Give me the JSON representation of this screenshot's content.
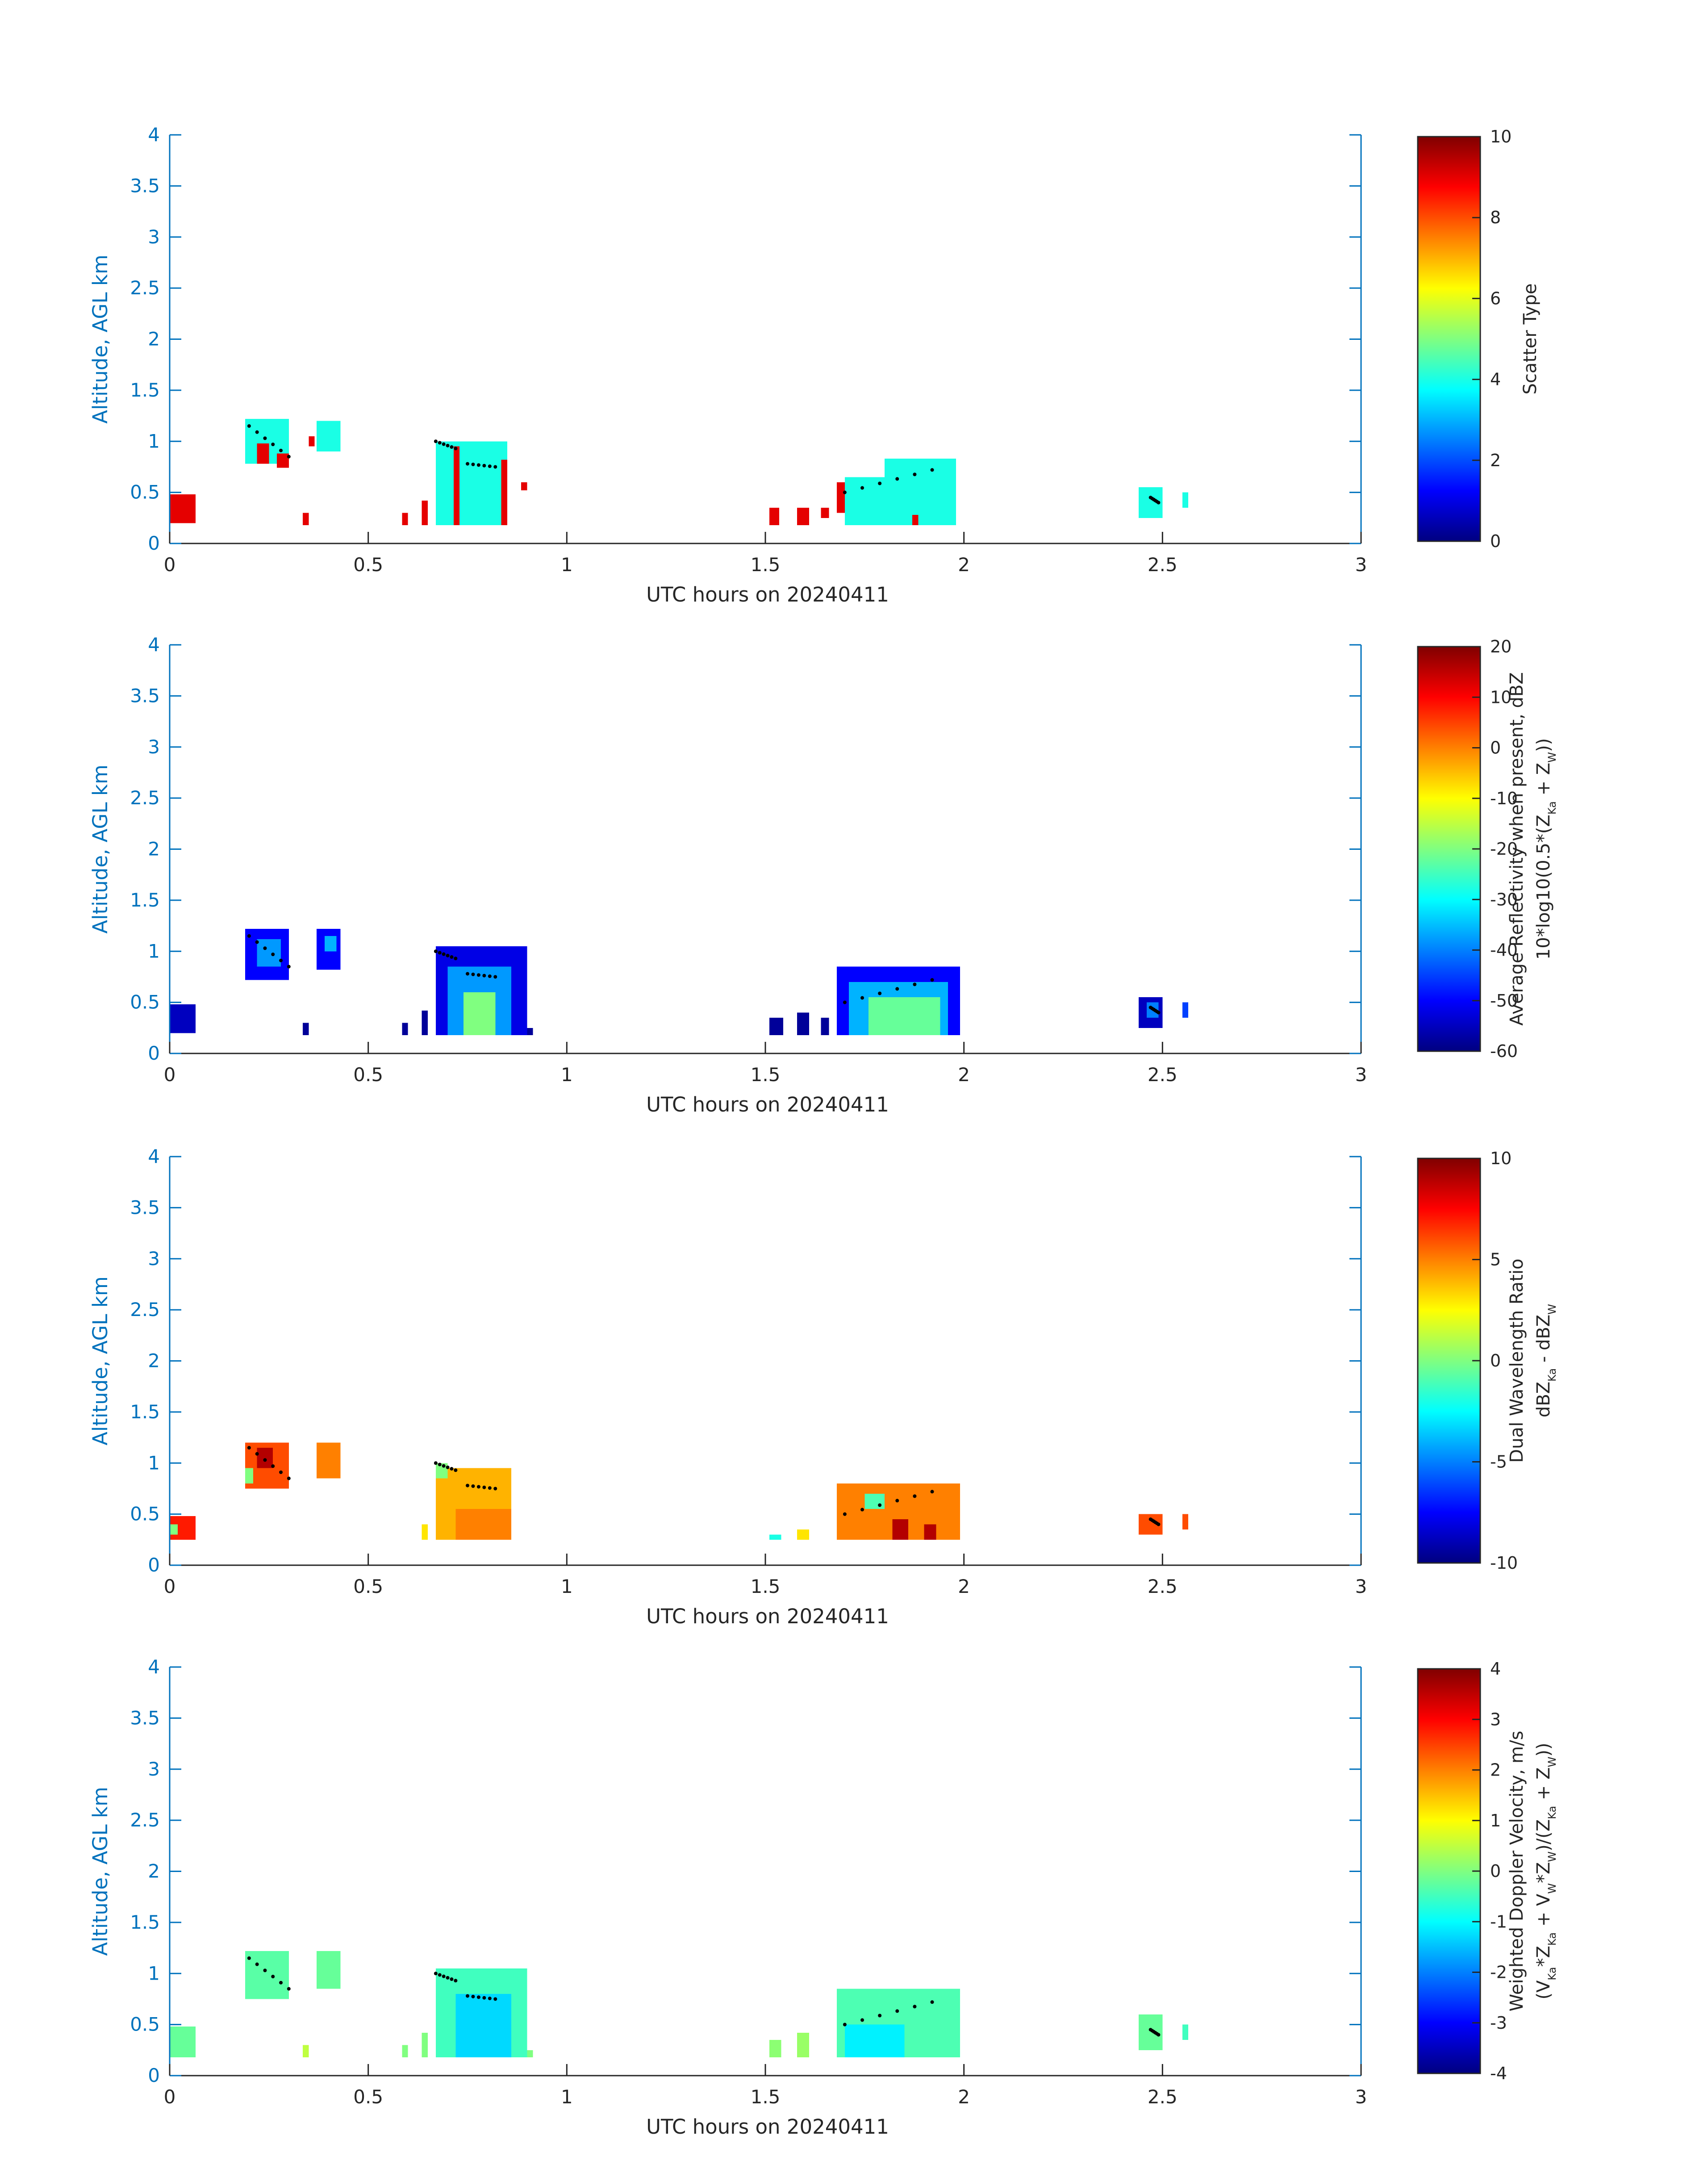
{
  "chart_data": [
    {
      "type": "heatmap",
      "panel": "scatter-type",
      "xlabel": "UTC hours on 20240411",
      "ylabel": "Altitude, AGL km",
      "xlim": [
        0,
        3
      ],
      "ylim": [
        0,
        4
      ],
      "xticks": [
        "0",
        "0.5",
        "1",
        "1.5",
        "2",
        "2.5",
        "3"
      ],
      "yticks": [
        "0",
        "0.5",
        "1",
        "1.5",
        "2",
        "2.5",
        "3",
        "3.5",
        "4"
      ],
      "colorbar": {
        "label_lines": [
          "Scatter Type"
        ],
        "range": [
          0,
          10
        ],
        "ticks": [
          "0",
          "2",
          "4",
          "6",
          "8",
          "10"
        ]
      },
      "cloud_blocks": [
        {
          "x0": 0.0,
          "x1": 0.065,
          "y0": 0.2,
          "y1": 0.48,
          "value": 9
        },
        {
          "x0": 0.19,
          "x1": 0.3,
          "y0": 0.78,
          "y1": 1.22,
          "value": 4
        },
        {
          "x0": 0.22,
          "x1": 0.25,
          "y0": 0.78,
          "y1": 0.98,
          "value": 9
        },
        {
          "x0": 0.27,
          "x1": 0.3,
          "y0": 0.74,
          "y1": 0.88,
          "value": 9
        },
        {
          "x0": 0.35,
          "x1": 0.365,
          "y0": 0.95,
          "y1": 1.05,
          "value": 9
        },
        {
          "x0": 0.37,
          "x1": 0.43,
          "y0": 0.9,
          "y1": 1.2,
          "value": 4
        },
        {
          "x0": 0.335,
          "x1": 0.35,
          "y0": 0.18,
          "y1": 0.3,
          "value": 9
        },
        {
          "x0": 0.585,
          "x1": 0.6,
          "y0": 0.18,
          "y1": 0.3,
          "value": 9
        },
        {
          "x0": 0.635,
          "x1": 0.65,
          "y0": 0.18,
          "y1": 0.42,
          "value": 9
        },
        {
          "x0": 0.67,
          "x1": 0.85,
          "y0": 0.18,
          "y1": 1.0,
          "value": 4
        },
        {
          "x0": 0.715,
          "x1": 0.73,
          "y0": 0.18,
          "y1": 0.95,
          "value": 9
        },
        {
          "x0": 0.835,
          "x1": 0.85,
          "y0": 0.18,
          "y1": 0.82,
          "value": 9
        },
        {
          "x0": 0.885,
          "x1": 0.9,
          "y0": 0.52,
          "y1": 0.6,
          "value": 9
        },
        {
          "x0": 1.51,
          "x1": 1.535,
          "y0": 0.18,
          "y1": 0.35,
          "value": 9
        },
        {
          "x0": 1.58,
          "x1": 1.61,
          "y0": 0.18,
          "y1": 0.35,
          "value": 9
        },
        {
          "x0": 1.64,
          "x1": 1.66,
          "y0": 0.25,
          "y1": 0.35,
          "value": 9
        },
        {
          "x0": 1.68,
          "x1": 1.7,
          "y0": 0.3,
          "y1": 0.6,
          "value": 9
        },
        {
          "x0": 1.7,
          "x1": 1.98,
          "y0": 0.18,
          "y1": 0.65,
          "value": 4
        },
        {
          "x0": 1.8,
          "x1": 1.98,
          "y0": 0.45,
          "y1": 0.83,
          "value": 4
        },
        {
          "x0": 1.87,
          "x1": 1.885,
          "y0": 0.18,
          "y1": 0.28,
          "value": 9
        },
        {
          "x0": 2.44,
          "x1": 2.5,
          "y0": 0.25,
          "y1": 0.55,
          "value": 4
        },
        {
          "x0": 2.55,
          "x1": 2.565,
          "y0": 0.35,
          "y1": 0.5,
          "value": 4
        }
      ]
    },
    {
      "type": "heatmap",
      "panel": "average-reflectivity",
      "xlabel": "UTC hours on 20240411",
      "ylabel": "Altitude, AGL km",
      "xlim": [
        0,
        3
      ],
      "ylim": [
        0,
        4
      ],
      "xticks": [
        "0",
        "0.5",
        "1",
        "1.5",
        "2",
        "2.5",
        "3"
      ],
      "yticks": [
        "0",
        "0.5",
        "1",
        "1.5",
        "2",
        "2.5",
        "3",
        "3.5",
        "4"
      ],
      "colorbar": {
        "label_lines": [
          "Average Reflectivity when present, dBZ",
          "10*log10(0.5*(Z",
          "Ka",
          " + Z",
          "W",
          "))"
        ],
        "range": [
          -60,
          20
        ],
        "ticks": [
          "-60",
          "-50",
          "-40",
          "-30",
          "-20",
          "-10",
          "0",
          "10",
          "20"
        ]
      },
      "cloud_blocks": [
        {
          "x0": 0.0,
          "x1": 0.065,
          "y0": 0.2,
          "y1": 0.48,
          "value": -55
        },
        {
          "x0": 0.19,
          "x1": 0.3,
          "y0": 0.72,
          "y1": 1.22,
          "value": -50
        },
        {
          "x0": 0.22,
          "x1": 0.28,
          "y0": 0.85,
          "y1": 1.12,
          "value": -38
        },
        {
          "x0": 0.37,
          "x1": 0.43,
          "y0": 0.82,
          "y1": 1.22,
          "value": -50
        },
        {
          "x0": 0.39,
          "x1": 0.42,
          "y0": 1.0,
          "y1": 1.15,
          "value": -36
        },
        {
          "x0": 0.335,
          "x1": 0.35,
          "y0": 0.18,
          "y1": 0.3,
          "value": -58
        },
        {
          "x0": 0.585,
          "x1": 0.6,
          "y0": 0.18,
          "y1": 0.3,
          "value": -58
        },
        {
          "x0": 0.635,
          "x1": 0.65,
          "y0": 0.18,
          "y1": 0.42,
          "value": -58
        },
        {
          "x0": 0.67,
          "x1": 0.9,
          "y0": 0.18,
          "y1": 1.05,
          "value": -52
        },
        {
          "x0": 0.7,
          "x1": 0.86,
          "y0": 0.18,
          "y1": 0.85,
          "value": -38
        },
        {
          "x0": 0.74,
          "x1": 0.82,
          "y0": 0.18,
          "y1": 0.6,
          "value": -20
        },
        {
          "x0": 0.9,
          "x1": 0.915,
          "y0": 0.18,
          "y1": 0.25,
          "value": -58
        },
        {
          "x0": 1.51,
          "x1": 1.545,
          "y0": 0.18,
          "y1": 0.35,
          "value": -58
        },
        {
          "x0": 1.58,
          "x1": 1.61,
          "y0": 0.18,
          "y1": 0.4,
          "value": -58
        },
        {
          "x0": 1.64,
          "x1": 1.66,
          "y0": 0.18,
          "y1": 0.35,
          "value": -58
        },
        {
          "x0": 1.68,
          "x1": 1.99,
          "y0": 0.18,
          "y1": 0.85,
          "value": -50
        },
        {
          "x0": 1.71,
          "x1": 1.96,
          "y0": 0.18,
          "y1": 0.7,
          "value": -36
        },
        {
          "x0": 1.76,
          "x1": 1.94,
          "y0": 0.18,
          "y1": 0.55,
          "value": -22
        },
        {
          "x0": 2.44,
          "x1": 2.5,
          "y0": 0.25,
          "y1": 0.55,
          "value": -55
        },
        {
          "x0": 2.46,
          "x1": 2.49,
          "y0": 0.35,
          "y1": 0.5,
          "value": -40
        },
        {
          "x0": 2.55,
          "x1": 2.565,
          "y0": 0.35,
          "y1": 0.5,
          "value": -45
        }
      ]
    },
    {
      "type": "heatmap",
      "panel": "dual-wavelength-ratio",
      "xlabel": "UTC hours on 20240411",
      "ylabel": "Altitude, AGL km",
      "xlim": [
        0,
        3
      ],
      "ylim": [
        0,
        4
      ],
      "xticks": [
        "0",
        "0.5",
        "1",
        "1.5",
        "2",
        "2.5",
        "3"
      ],
      "yticks": [
        "0",
        "0.5",
        "1",
        "1.5",
        "2",
        "2.5",
        "3",
        "3.5",
        "4"
      ],
      "colorbar": {
        "label_lines": [
          "Dual Wavelength Ratio",
          "dBZ",
          "Ka",
          " - dBZ",
          "W"
        ],
        "range": [
          -10,
          10
        ],
        "ticks": [
          "-10",
          "-5",
          "0",
          "5",
          "10"
        ]
      },
      "cloud_blocks": [
        {
          "x0": 0.0,
          "x1": 0.065,
          "y0": 0.25,
          "y1": 0.48,
          "value": 7
        },
        {
          "x0": 0.0,
          "x1": 0.02,
          "y0": 0.3,
          "y1": 0.4,
          "value": 0
        },
        {
          "x0": 0.19,
          "x1": 0.3,
          "y0": 0.75,
          "y1": 1.2,
          "value": 6
        },
        {
          "x0": 0.22,
          "x1": 0.26,
          "y0": 0.95,
          "y1": 1.15,
          "value": 9
        },
        {
          "x0": 0.19,
          "x1": 0.21,
          "y0": 0.8,
          "y1": 0.95,
          "value": 0
        },
        {
          "x0": 0.37,
          "x1": 0.43,
          "y0": 0.85,
          "y1": 1.2,
          "value": 5
        },
        {
          "x0": 0.635,
          "x1": 0.65,
          "y0": 0.25,
          "y1": 0.4,
          "value": 3
        },
        {
          "x0": 0.67,
          "x1": 0.86,
          "y0": 0.25,
          "y1": 0.95,
          "value": 4
        },
        {
          "x0": 0.72,
          "x1": 0.86,
          "y0": 0.25,
          "y1": 0.55,
          "value": 5
        },
        {
          "x0": 0.67,
          "x1": 0.7,
          "y0": 0.85,
          "y1": 1.0,
          "value": 0
        },
        {
          "x0": 1.51,
          "x1": 1.54,
          "y0": 0.25,
          "y1": 0.3,
          "value": -2
        },
        {
          "x0": 1.58,
          "x1": 1.61,
          "y0": 0.25,
          "y1": 0.35,
          "value": 3
        },
        {
          "x0": 1.68,
          "x1": 1.99,
          "y0": 0.25,
          "y1": 0.8,
          "value": 5
        },
        {
          "x0": 1.82,
          "x1": 1.86,
          "y0": 0.25,
          "y1": 0.45,
          "value": 9
        },
        {
          "x0": 1.9,
          "x1": 1.93,
          "y0": 0.25,
          "y1": 0.4,
          "value": 9
        },
        {
          "x0": 1.75,
          "x1": 1.8,
          "y0": 0.55,
          "y1": 0.7,
          "value": -1
        },
        {
          "x0": 2.44,
          "x1": 2.5,
          "y0": 0.3,
          "y1": 0.5,
          "value": 6
        },
        {
          "x0": 2.55,
          "x1": 2.565,
          "y0": 0.35,
          "y1": 0.5,
          "value": 6
        }
      ]
    },
    {
      "type": "heatmap",
      "panel": "weighted-doppler-velocity",
      "xlabel": "UTC hours on 20240411",
      "ylabel": "Altitude, AGL km",
      "xlim": [
        0,
        3
      ],
      "ylim": [
        0,
        4
      ],
      "xticks": [
        "0",
        "0.5",
        "1",
        "1.5",
        "2",
        "2.5",
        "3"
      ],
      "yticks": [
        "0",
        "0.5",
        "1",
        "1.5",
        "2",
        "2.5",
        "3",
        "3.5",
        "4"
      ],
      "colorbar": {
        "label_lines": [
          "Weighted Doppler Velocity, m/s",
          "(V",
          "Ka",
          "*Z",
          "Ka",
          " + V",
          "W",
          "*Z",
          "W",
          ")/(Z",
          "Ka",
          " + Z",
          "W",
          "))"
        ],
        "range": [
          -4,
          4
        ],
        "ticks": [
          "-4",
          "-3",
          "-2",
          "-1",
          "0",
          "1",
          "2",
          "3",
          "4"
        ]
      },
      "cloud_blocks": [
        {
          "x0": 0.0,
          "x1": 0.065,
          "y0": 0.18,
          "y1": 0.48,
          "value": -0.2
        },
        {
          "x0": 0.19,
          "x1": 0.3,
          "y0": 0.75,
          "y1": 1.22,
          "value": -0.3
        },
        {
          "x0": 0.37,
          "x1": 0.43,
          "y0": 0.85,
          "y1": 1.22,
          "value": -0.2
        },
        {
          "x0": 0.335,
          "x1": 0.35,
          "y0": 0.18,
          "y1": 0.3,
          "value": 0.5
        },
        {
          "x0": 0.585,
          "x1": 0.6,
          "y0": 0.18,
          "y1": 0.3,
          "value": 0
        },
        {
          "x0": 0.635,
          "x1": 0.65,
          "y0": 0.18,
          "y1": 0.42,
          "value": 0
        },
        {
          "x0": 0.67,
          "x1": 0.9,
          "y0": 0.18,
          "y1": 1.05,
          "value": -0.5
        },
        {
          "x0": 0.72,
          "x1": 0.86,
          "y0": 0.18,
          "y1": 0.8,
          "value": -1.3
        },
        {
          "x0": 0.9,
          "x1": 0.915,
          "y0": 0.18,
          "y1": 0.25,
          "value": 0
        },
        {
          "x0": 1.51,
          "x1": 1.54,
          "y0": 0.18,
          "y1": 0.35,
          "value": 0.1
        },
        {
          "x0": 1.58,
          "x1": 1.61,
          "y0": 0.18,
          "y1": 0.42,
          "value": 0.2
        },
        {
          "x0": 1.68,
          "x1": 1.99,
          "y0": 0.18,
          "y1": 0.85,
          "value": -0.4
        },
        {
          "x0": 1.7,
          "x1": 1.85,
          "y0": 0.18,
          "y1": 0.5,
          "value": -1.1
        },
        {
          "x0": 2.44,
          "x1": 2.5,
          "y0": 0.25,
          "y1": 0.6,
          "value": -0.2
        },
        {
          "x0": 2.55,
          "x1": 2.565,
          "y0": 0.35,
          "y1": 0.5,
          "value": -0.5
        }
      ]
    }
  ]
}
